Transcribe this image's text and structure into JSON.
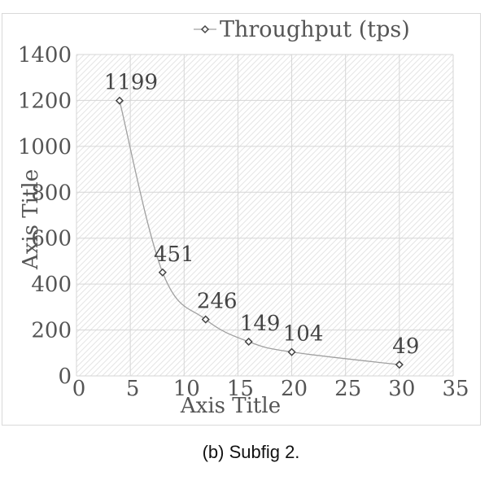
{
  "caption": "(b) Subfig 2.",
  "colors": {
    "line": "#a0a0a0",
    "marker": "#444444",
    "grid": "#d6d6d6",
    "text": "#555555"
  },
  "chart_data": {
    "type": "scatter",
    "xlabel": "Axis Title",
    "ylabel": "Axis Title",
    "xlim": [
      0,
      35
    ],
    "ylim": [
      0,
      1400
    ],
    "x_ticks": [
      0,
      5,
      10,
      15,
      20,
      25,
      30,
      35
    ],
    "y_ticks": [
      0,
      200,
      400,
      600,
      800,
      1000,
      1200,
      1400
    ],
    "grid": true,
    "legend_position": "top",
    "series": [
      {
        "name": "Throughput (tps)",
        "marker": "diamond",
        "line": "smooth",
        "x": [
          4,
          8,
          12,
          16,
          20,
          30
        ],
        "y": [
          1199,
          451,
          246,
          149,
          104,
          49
        ],
        "labels": [
          "1199",
          "451",
          "246",
          "149",
          "104",
          "49"
        ]
      }
    ]
  }
}
